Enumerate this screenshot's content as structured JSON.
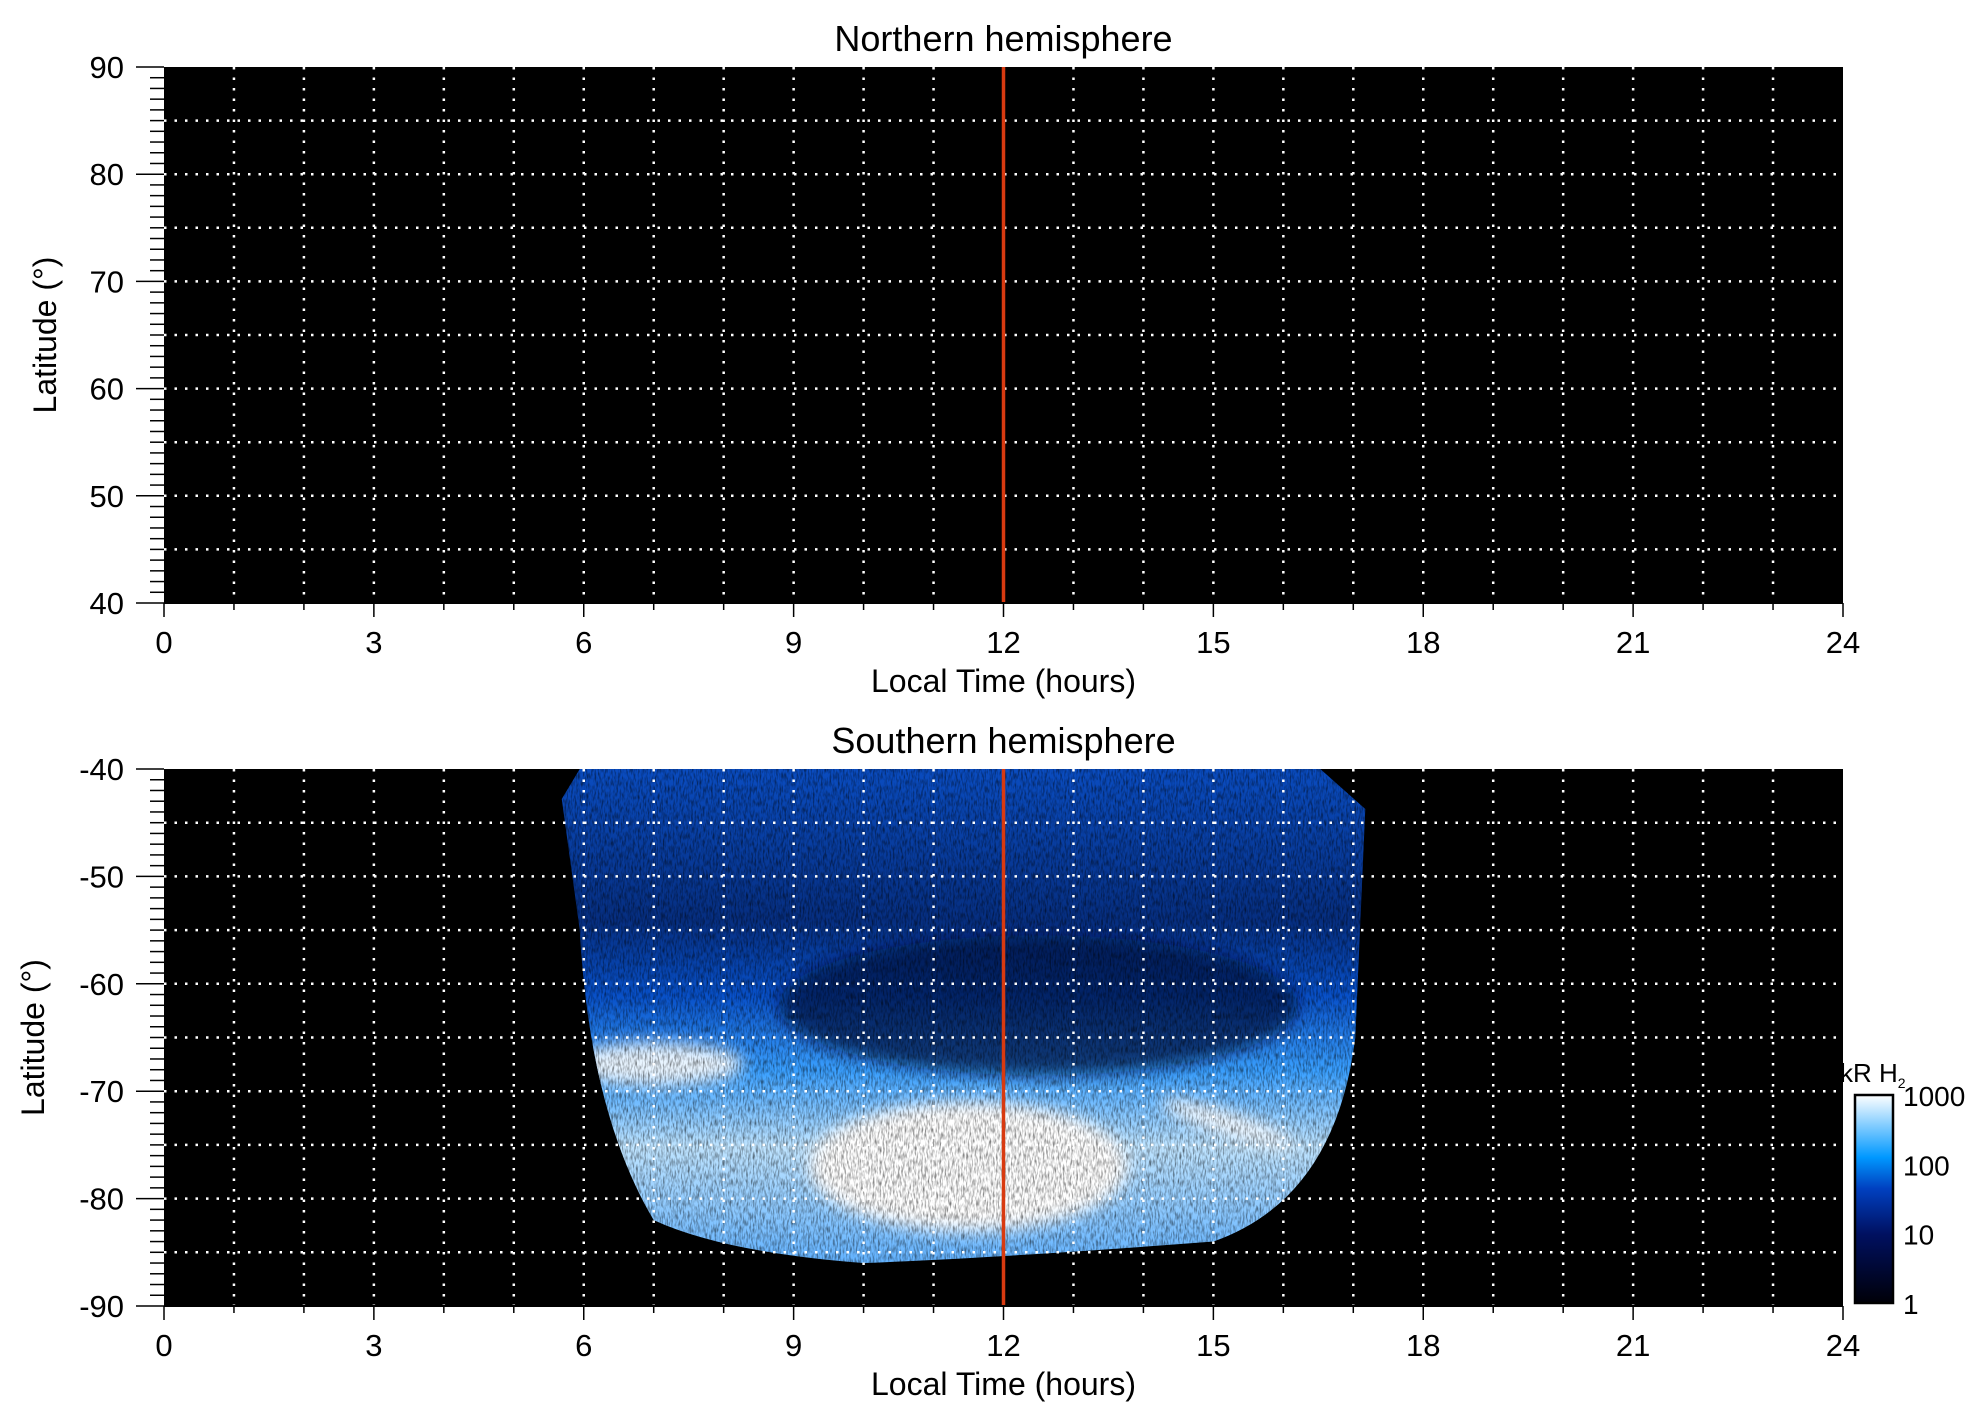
{
  "chart_data": [
    {
      "type": "heatmap",
      "title": "Northern hemisphere",
      "xlabel": "Local Time (hours)",
      "ylabel": "Latitude (°)",
      "xlim": [
        0,
        24
      ],
      "ylim": [
        40,
        90
      ],
      "xticks": [
        0,
        3,
        6,
        9,
        12,
        15,
        18,
        21,
        24
      ],
      "yticks": [
        40,
        50,
        60,
        70,
        80,
        90
      ],
      "grid": true,
      "grid_x_step": 1,
      "grid_y_step": 5,
      "marker_line_x": 12,
      "marker_line_color": "#d83a10",
      "emission": "none"
    },
    {
      "type": "heatmap",
      "title": "Southern hemisphere",
      "xlabel": "Local Time (hours)",
      "ylabel": "Latitude (°)",
      "xlim": [
        0,
        24
      ],
      "ylim": [
        -90,
        -40
      ],
      "xticks": [
        0,
        3,
        6,
        9,
        12,
        15,
        18,
        21,
        24
      ],
      "yticks": [
        -90,
        -80,
        -70,
        -60,
        -50,
        -40
      ],
      "grid": true,
      "grid_x_step": 1,
      "grid_y_step": 5,
      "marker_line_x": 12,
      "marker_line_color": "#d83a10",
      "emission_extent": {
        "local_time": [
          5.8,
          17.1
        ],
        "latitude": [
          -86,
          -40
        ]
      },
      "bright_oval": {
        "latitude_range": [
          -78,
          -66
        ],
        "peak_kR": 1000
      },
      "colorbar": {
        "label": "kR H",
        "label_subscript": "2",
        "scale": "log",
        "ticks": [
          "1000",
          "100",
          "10",
          "1"
        ],
        "range": [
          1,
          1000
        ],
        "colors": [
          "#000008",
          "#001060",
          "#0050d0",
          "#0098ff",
          "#ffffff"
        ]
      }
    }
  ]
}
